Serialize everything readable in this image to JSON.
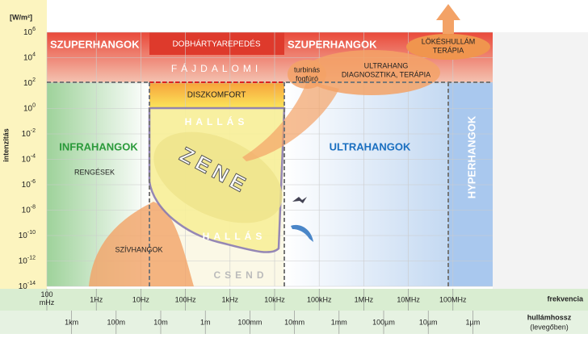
{
  "y_axis": {
    "unit": "[W/m²]",
    "title": "intenzitás",
    "base": "10",
    "exponents": [
      "6",
      "4",
      "2",
      "0",
      "-2",
      "-4",
      "-6",
      "-8",
      "-10",
      "-12",
      "-14"
    ]
  },
  "x_axis": {
    "title": "frekvencia",
    "labels": [
      "100\nmHz",
      "1Hz",
      "10Hz",
      "100Hz",
      "1kHz",
      "10kHz",
      "100kHz",
      "1MHz",
      "10MHz",
      "100MHz"
    ]
  },
  "wavelength": {
    "title": "hullámhossz",
    "subtitle": "(levegőben)",
    "labels": [
      "1km",
      "100m",
      "10m",
      "1m",
      "100mm",
      "10mm",
      "1mm",
      "100µm",
      "10µm",
      "1µm"
    ]
  },
  "regions": {
    "ultra_left": "SZUPERHANGOK",
    "ultra_right": "SZUPERHANGOK",
    "eardrum": "DOBHÁRTYAREPEDÉS",
    "pain": "FÁJDALOMI",
    "discomfort": "DISZKOMFORT",
    "hearing_top": "HALLÁS",
    "hearing_bottom": "HALLÁS",
    "music": "ZENE",
    "silence": "CSEND",
    "infra": "INFRAHANGOK",
    "quakes": "RENGÉSEK",
    "heart": "SZÍVHANGOK",
    "ultrasound": "ULTRAHANGOK",
    "hypersound": "HYPERHANGOK",
    "drill": [
      "turbinás",
      "fogfúró"
    ],
    "diagnostics": [
      "ULTRAHANG",
      "DIAGNOSZTIKA, TERÁPIA"
    ],
    "shockwave": [
      "LÖKÉSHULLÁM",
      "TERÁPIA"
    ]
  }
}
